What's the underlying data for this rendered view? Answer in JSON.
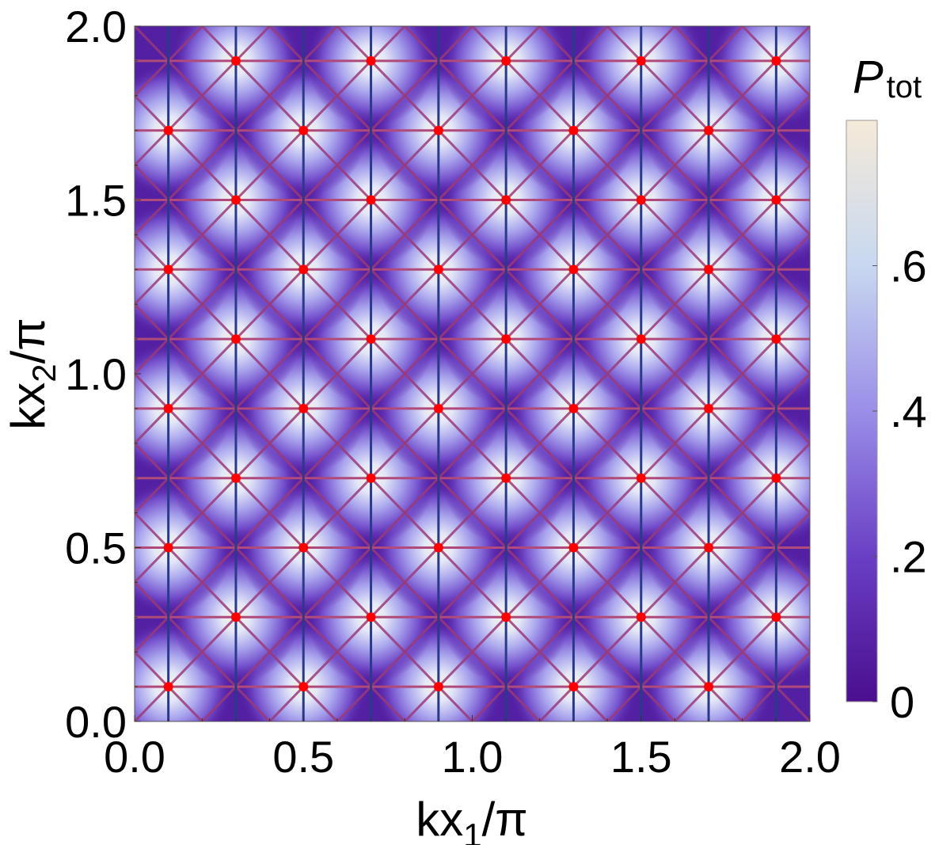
{
  "chart_data": {
    "type": "heatmap",
    "title": "",
    "xlabel_base": "kx",
    "xlabel_sub": "1",
    "xlabel_tail": "/π",
    "ylabel_base": "kx",
    "ylabel_sub": "2",
    "ylabel_tail": "/π",
    "xlim": [
      0,
      2
    ],
    "ylim": [
      0,
      2
    ],
    "x_ticks": [
      0.0,
      0.5,
      1.0,
      1.5,
      2.0
    ],
    "x_tick_labels": [
      "0.0",
      "0.5",
      "1.0",
      "1.5",
      "2.0"
    ],
    "y_ticks": [
      0.0,
      0.5,
      1.0,
      1.5,
      2.0
    ],
    "y_tick_labels": [
      "0.0",
      "0.5",
      "1.0",
      "1.5",
      "2.0"
    ],
    "colorbar": {
      "title_main": "P",
      "title_sub": "tot",
      "range": [
        0,
        0.8
      ],
      "ticks": [
        0,
        0.2,
        0.4,
        0.6
      ],
      "tick_labels": [
        "0",
        ".2",
        ".4",
        ".6"
      ],
      "colors": [
        "#4a0e8f",
        "#6a3fc4",
        "#9a8ee8",
        "#c8d8f0",
        "#f5ead8"
      ]
    },
    "lattice": {
      "centers": [
        0.1,
        0.3,
        0.5,
        0.7,
        0.9,
        1.1,
        1.3,
        1.5,
        1.7,
        1.9
      ],
      "peak_value": 0.78,
      "min_value": 0.02
    },
    "marker_color": "#ff0000",
    "vertical_line_color": "#2a3a8a",
    "horizontal_line_color": "#b04a7a",
    "diagonal_line_color": "#9a3a78",
    "vertical_lines_x": [
      0.1,
      0.3,
      0.5,
      0.7,
      0.9,
      1.1,
      1.3,
      1.5,
      1.7,
      1.9
    ],
    "horizontal_lines_y": [
      0.1,
      0.3,
      0.5,
      0.7,
      0.9,
      1.1,
      1.3,
      1.5,
      1.7,
      1.9
    ],
    "points": [
      {
        "x": 0.1,
        "y": 0.1
      },
      {
        "x": 0.5,
        "y": 0.1
      },
      {
        "x": 0.9,
        "y": 0.1
      },
      {
        "x": 1.3,
        "y": 0.1
      },
      {
        "x": 1.7,
        "y": 0.1
      },
      {
        "x": 0.3,
        "y": 0.3
      },
      {
        "x": 0.7,
        "y": 0.3
      },
      {
        "x": 1.1,
        "y": 0.3
      },
      {
        "x": 1.5,
        "y": 0.3
      },
      {
        "x": 1.9,
        "y": 0.3
      },
      {
        "x": 0.1,
        "y": 0.5
      },
      {
        "x": 0.5,
        "y": 0.5
      },
      {
        "x": 0.9,
        "y": 0.5
      },
      {
        "x": 1.3,
        "y": 0.5
      },
      {
        "x": 1.7,
        "y": 0.5
      },
      {
        "x": 0.3,
        "y": 0.7
      },
      {
        "x": 0.7,
        "y": 0.7
      },
      {
        "x": 1.1,
        "y": 0.7
      },
      {
        "x": 1.5,
        "y": 0.7
      },
      {
        "x": 1.9,
        "y": 0.7
      },
      {
        "x": 0.1,
        "y": 0.9
      },
      {
        "x": 0.5,
        "y": 0.9
      },
      {
        "x": 0.9,
        "y": 0.9
      },
      {
        "x": 1.3,
        "y": 0.9
      },
      {
        "x": 1.7,
        "y": 0.9
      },
      {
        "x": 0.3,
        "y": 1.1
      },
      {
        "x": 0.7,
        "y": 1.1
      },
      {
        "x": 1.1,
        "y": 1.1
      },
      {
        "x": 1.5,
        "y": 1.1
      },
      {
        "x": 1.9,
        "y": 1.1
      },
      {
        "x": 0.1,
        "y": 1.3
      },
      {
        "x": 0.5,
        "y": 1.3
      },
      {
        "x": 0.9,
        "y": 1.3
      },
      {
        "x": 1.3,
        "y": 1.3
      },
      {
        "x": 1.7,
        "y": 1.3
      },
      {
        "x": 0.3,
        "y": 1.5
      },
      {
        "x": 0.7,
        "y": 1.5
      },
      {
        "x": 1.1,
        "y": 1.5
      },
      {
        "x": 1.5,
        "y": 1.5
      },
      {
        "x": 1.9,
        "y": 1.5
      },
      {
        "x": 0.1,
        "y": 1.7
      },
      {
        "x": 0.5,
        "y": 1.7
      },
      {
        "x": 0.9,
        "y": 1.7
      },
      {
        "x": 1.3,
        "y": 1.7
      },
      {
        "x": 1.7,
        "y": 1.7
      },
      {
        "x": 0.3,
        "y": 1.9
      },
      {
        "x": 0.7,
        "y": 1.9
      },
      {
        "x": 1.1,
        "y": 1.9
      },
      {
        "x": 1.5,
        "y": 1.9
      },
      {
        "x": 1.9,
        "y": 1.9
      }
    ]
  }
}
